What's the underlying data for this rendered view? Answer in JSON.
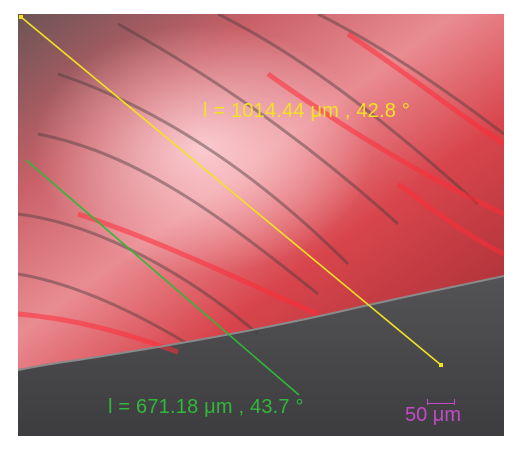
{
  "image": {
    "description_type": "fluorescence microscopy overlay",
    "colors": {
      "fluorescence": "#ff3b44",
      "background_gray": "#5a5a5c",
      "yellow_line": "#f3e222",
      "green_line": "#2fb83a",
      "scale_text": "#c04bc6",
      "white": "#ffffff"
    }
  },
  "measurements": {
    "yellow": {
      "text": "l = 1014.44 μm ,  42.8 °",
      "length": "1014.44 μm",
      "angle": "42.8 °"
    },
    "green": {
      "text": "l = 671.18 μm ,  43.7 °",
      "length": "671.18 μm",
      "angle": "43.7 °"
    }
  },
  "scale_bar": {
    "label": "50 μm"
  }
}
